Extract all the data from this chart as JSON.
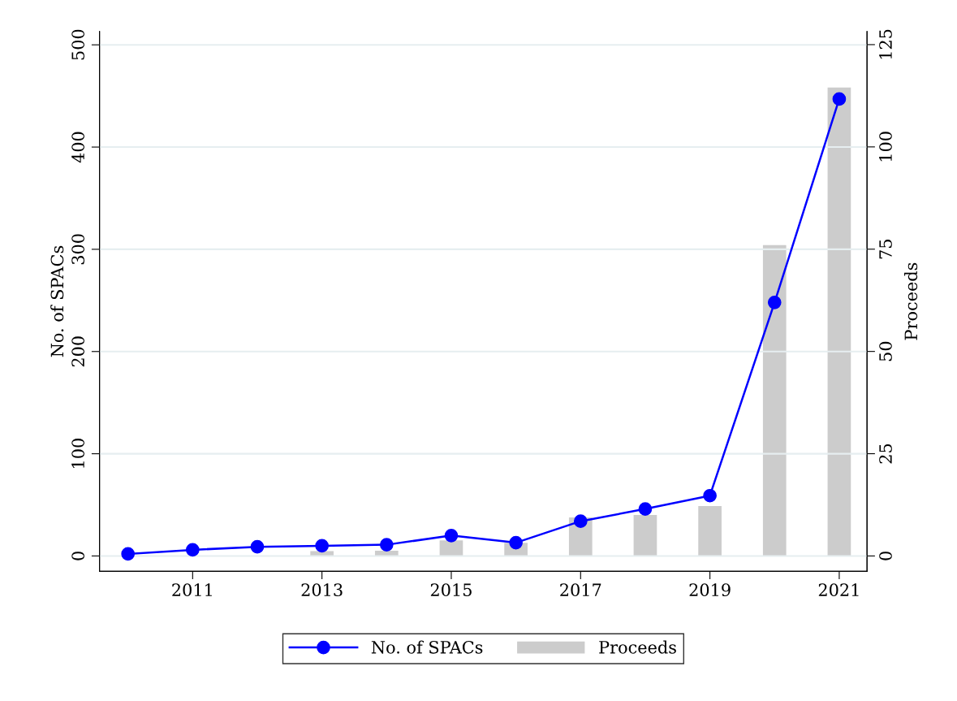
{
  "chart_data": {
    "type": "line",
    "ylabel": "No. of SPACs",
    "y2label": "Proceeds",
    "x": [
      2010,
      2011,
      2012,
      2013,
      2014,
      2015,
      2016,
      2017,
      2018,
      2019,
      2020,
      2021
    ],
    "series": [
      {
        "name": "No. of SPACs",
        "color": "#0000ff",
        "marker": "circle",
        "values": [
          2,
          6,
          9,
          10,
          11,
          20,
          13,
          34,
          46,
          59,
          248,
          447
        ]
      },
      {
        "name": "Proceeds",
        "type": "bar",
        "axis": "y2",
        "color": "#cccccc",
        "values": [
          0,
          0,
          0,
          1.2,
          1.3,
          3.8,
          3.2,
          9.4,
          10,
          12.2,
          76,
          114.5
        ]
      }
    ],
    "xlim": [
      2009.56,
      2021.43
    ],
    "xticks": [
      2011,
      2013,
      2015,
      2017,
      2019,
      2021
    ],
    "ylim": [
      -15,
      513
    ],
    "yticks": [
      0,
      100,
      200,
      300,
      400,
      500
    ],
    "y2lim": [
      -3.75,
      128.2
    ],
    "y2ticks": [
      0,
      25,
      50,
      75,
      100,
      125
    ],
    "grid": "y",
    "legend": "bottom"
  }
}
